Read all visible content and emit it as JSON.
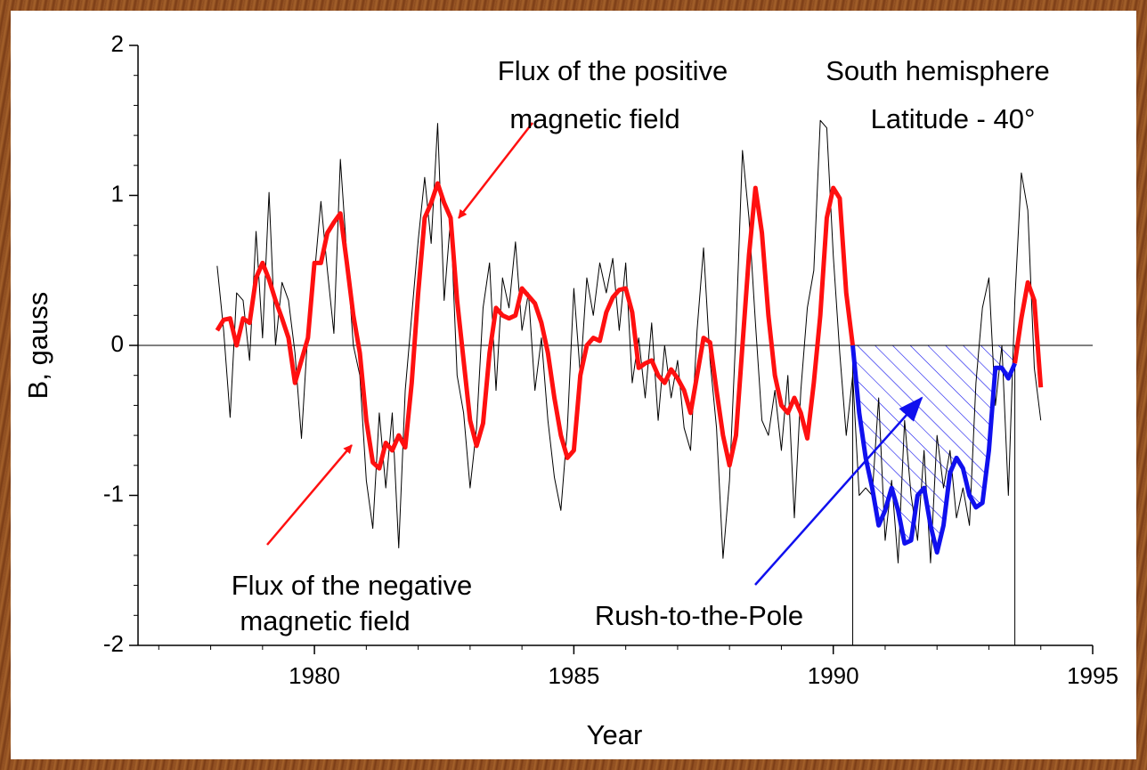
{
  "chart_data": {
    "type": "line",
    "x_label": "Year",
    "y_label": "B, gauss",
    "annotations": [
      "Flux of the positive",
      "magnetic field",
      "South hemisphere",
      "Latitude - 40°",
      "Flux of the negative",
      "magnetic field",
      "Rush-to-the-Pole"
    ],
    "xlim": [
      1976.6,
      1995
    ],
    "xticks": [
      1980,
      1985,
      1990,
      1995
    ],
    "ylim": [
      -2,
      2
    ],
    "yticks": [
      -2,
      -1,
      0,
      1,
      2
    ],
    "x": [
      1978.125,
      1978.25,
      1978.375,
      1978.5,
      1978.625,
      1978.75,
      1978.875,
      1979,
      1979.125,
      1979.25,
      1979.375,
      1979.5,
      1979.625,
      1979.75,
      1979.875,
      1980,
      1980.125,
      1980.25,
      1980.375,
      1980.5,
      1980.625,
      1980.75,
      1980.875,
      1981,
      1981.125,
      1981.25,
      1981.375,
      1981.5,
      1981.625,
      1981.75,
      1981.875,
      1982,
      1982.125,
      1982.25,
      1982.375,
      1982.5,
      1982.625,
      1982.75,
      1982.875,
      1983,
      1983.125,
      1983.25,
      1983.375,
      1983.5,
      1983.625,
      1983.75,
      1983.875,
      1984,
      1984.125,
      1984.25,
      1984.375,
      1984.5,
      1984.625,
      1984.75,
      1984.875,
      1985,
      1985.125,
      1985.25,
      1985.375,
      1985.5,
      1985.625,
      1985.75,
      1985.875,
      1986,
      1986.125,
      1986.25,
      1986.375,
      1986.5,
      1986.625,
      1986.75,
      1986.875,
      1987,
      1987.125,
      1987.25,
      1987.375,
      1987.5,
      1987.625,
      1987.75,
      1987.875,
      1988,
      1988.125,
      1988.25,
      1988.375,
      1988.5,
      1988.625,
      1988.75,
      1988.875,
      1989,
      1989.125,
      1989.25,
      1989.375,
      1989.5,
      1989.625,
      1989.75,
      1989.875,
      1990,
      1990.125,
      1990.25,
      1990.375,
      1990.5,
      1990.625,
      1990.75,
      1990.875,
      1991,
      1991.125,
      1991.25,
      1991.375,
      1991.5,
      1991.625,
      1991.75,
      1991.875,
      1992,
      1992.125,
      1992.25,
      1992.375,
      1992.5,
      1992.625,
      1992.75,
      1992.875,
      1993,
      1993.125,
      1993.25,
      1993.375,
      1993.5,
      1993.625,
      1993.75,
      1993.875,
      1994
    ],
    "series": [
      {
        "color": "#000000",
        "width": 1,
        "values": [
          0.53,
          0.1,
          -0.48,
          0.35,
          0.3,
          -0.1,
          0.76,
          0.05,
          1.02,
          0,
          0.42,
          0.3,
          -0.05,
          -0.62,
          0.1,
          0.47,
          0.96,
          0.5,
          0.08,
          1.24,
          0.6,
          0,
          -0.2,
          -0.9,
          -1.22,
          -0.45,
          -0.95,
          -0.45,
          -1.35,
          -0.3,
          0.2,
          0.7,
          1.12,
          0.68,
          1.48,
          0.3,
          0.85,
          -0.2,
          -0.45,
          -0.95,
          -0.55,
          0.25,
          0.55,
          -0.3,
          0.45,
          0.25,
          0.69,
          0.1,
          0.35,
          -0.3,
          0.05,
          -0.5,
          -0.88,
          -1.1,
          -0.55,
          0.38,
          -0.2,
          0.45,
          0.2,
          0.55,
          0.35,
          0.58,
          0.1,
          0.55,
          -0.25,
          0.05,
          -0.35,
          0.15,
          -0.5,
          0,
          -0.35,
          -0.1,
          -0.55,
          -0.7,
          0.1,
          0.65,
          -0.1,
          -0.55,
          -1.42,
          -0.9,
          0.1,
          1.3,
          0.85,
          0.15,
          -0.5,
          -0.6,
          -0.3,
          -0.7,
          -0.2,
          -1.15,
          -0.3,
          0.25,
          0.5,
          1.5,
          1.45,
          0.6,
          -0.05,
          -0.6,
          -0.2,
          -1,
          -0.95,
          -1,
          -0.35,
          -1.3,
          -0.9,
          -1.45,
          -0.5,
          -1,
          -1.3,
          -0.7,
          -1.45,
          -0.6,
          -0.95,
          -0.7,
          -1.15,
          -0.95,
          -1.2,
          -0.25,
          0.25,
          0.45,
          -0.4,
          0,
          -1,
          0.3,
          1.15,
          0.9,
          -0.15,
          -0.5
        ]
      },
      {
        "color": "#ff1010",
        "width": 5,
        "values": [
          0.1,
          0.17,
          0.18,
          0,
          0.18,
          0.15,
          0.45,
          0.55,
          0.44,
          0.3,
          0.18,
          0.05,
          -0.25,
          -0.1,
          0.05,
          0.55,
          0.55,
          0.75,
          0.82,
          0.88,
          0.55,
          0.2,
          -0.05,
          -0.5,
          -0.78,
          -0.82,
          -0.65,
          -0.7,
          -0.6,
          -0.68,
          -0.25,
          0.35,
          0.85,
          0.95,
          1.08,
          0.95,
          0.85,
          0.3,
          -0.1,
          -0.5,
          -0.67,
          -0.52,
          -0.05,
          0.25,
          0.2,
          0.18,
          0.2,
          0.38,
          0.33,
          0.28,
          0.15,
          -0.05,
          -0.35,
          -0.6,
          -0.75,
          -0.7,
          -0.2,
          0,
          0.05,
          0.03,
          0.22,
          0.32,
          0.37,
          0.38,
          0.22,
          -0.15,
          -0.12,
          -0.1,
          -0.2,
          -0.25,
          -0.16,
          -0.22,
          -0.3,
          -0.45,
          -0.2,
          0.05,
          0.02,
          -0.3,
          -0.6,
          -0.8,
          -0.6,
          0,
          0.6,
          1.05,
          0.75,
          0.2,
          -0.2,
          -0.4,
          -0.45,
          -0.35,
          -0.45,
          -0.62,
          -0.25,
          0.2,
          0.85,
          1.05,
          0.98,
          0.35,
          0,
          null,
          null,
          null,
          null,
          null,
          null,
          null,
          null,
          null,
          null,
          null,
          null,
          null,
          null,
          null,
          null,
          null,
          null,
          null,
          null,
          null,
          null,
          null,
          null,
          -0.12,
          0.18,
          0.42,
          0.3,
          -0.28
        ]
      },
      {
        "color": "#1010ee",
        "width": 5,
        "hatched": true,
        "values": [
          null,
          null,
          null,
          null,
          null,
          null,
          null,
          null,
          null,
          null,
          null,
          null,
          null,
          null,
          null,
          null,
          null,
          null,
          null,
          null,
          null,
          null,
          null,
          null,
          null,
          null,
          null,
          null,
          null,
          null,
          null,
          null,
          null,
          null,
          null,
          null,
          null,
          null,
          null,
          null,
          null,
          null,
          null,
          null,
          null,
          null,
          null,
          null,
          null,
          null,
          null,
          null,
          null,
          null,
          null,
          null,
          null,
          null,
          null,
          null,
          null,
          null,
          null,
          null,
          null,
          null,
          null,
          null,
          null,
          null,
          null,
          null,
          null,
          null,
          null,
          null,
          null,
          null,
          null,
          null,
          null,
          null,
          null,
          null,
          null,
          null,
          null,
          null,
          null,
          null,
          null,
          null,
          null,
          null,
          null,
          null,
          null,
          null,
          0,
          -0.45,
          -0.75,
          -0.95,
          -1.2,
          -1.1,
          -0.95,
          -1.1,
          -1.32,
          -1.3,
          -1,
          -0.95,
          -1.2,
          -1.38,
          -1.2,
          -0.85,
          -0.75,
          -0.82,
          -1,
          -1.08,
          -1.05,
          -0.7,
          -0.15,
          -0.15,
          -0.22,
          -0.12,
          null,
          null,
          null,
          null
        ]
      }
    ]
  }
}
